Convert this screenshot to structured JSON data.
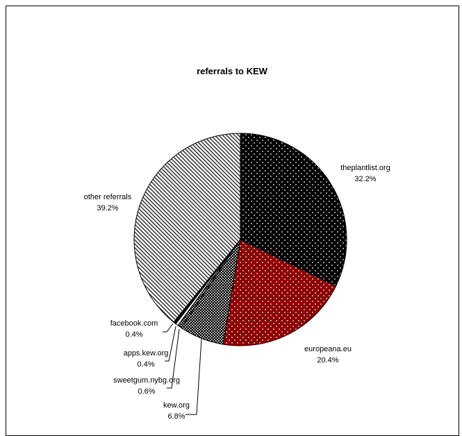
{
  "chart_data": {
    "type": "pie",
    "title": "referrals to KEW",
    "slices": [
      {
        "label": "theplantlist.org",
        "percent_label": "32.2%",
        "value": 32.2,
        "color": "#000000",
        "pattern": "white-dots"
      },
      {
        "label": "europeana.eu",
        "percent_label": "20.4%",
        "value": 20.4,
        "color": "#8b0000",
        "pattern": "white-dots"
      },
      {
        "label": "kew.org",
        "percent_label": "6.8%",
        "value": 6.8,
        "color": "#000000",
        "pattern": "dense-checker"
      },
      {
        "label": "sweetgum.nybg.org",
        "percent_label": "0.6%",
        "value": 0.6,
        "color": "#000000",
        "pattern": "dense-checker"
      },
      {
        "label": "apps.kew.org",
        "percent_label": "0.4%",
        "value": 0.4,
        "color": "#ffffff",
        "pattern": "solid"
      },
      {
        "label": "facebook.com",
        "percent_label": "0.4%",
        "value": 0.4,
        "color": "#000000",
        "pattern": "solid"
      },
      {
        "label": "other referrals",
        "percent_label": "39.2%",
        "value": 39.2,
        "color": "#555555",
        "pattern": "diagonal-stripes"
      }
    ],
    "legend": "none",
    "start_angle": "12 o'clock",
    "direction": "clockwise"
  }
}
